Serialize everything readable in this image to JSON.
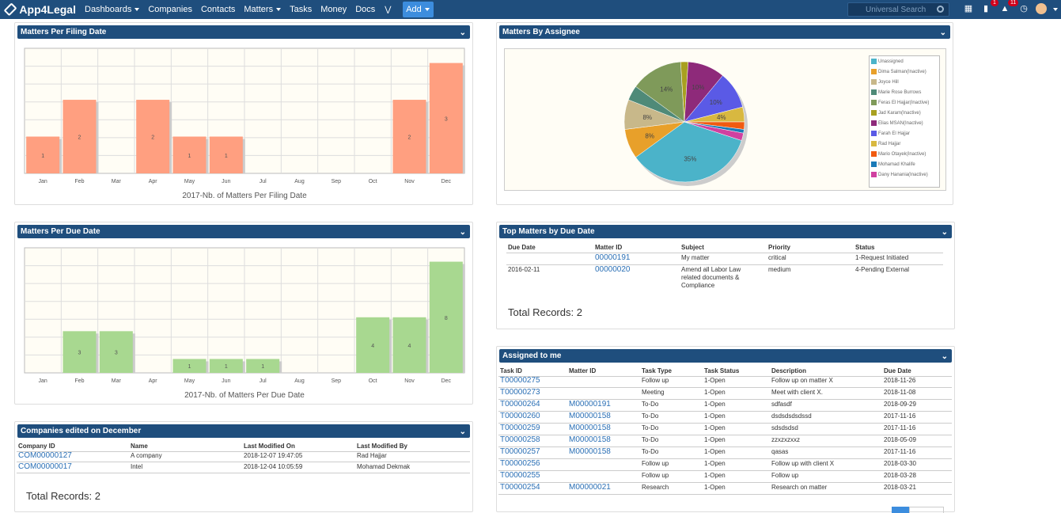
{
  "app": {
    "name": "App4Legal"
  },
  "nav": {
    "items": [
      {
        "label": "Dashboards",
        "caret": true
      },
      {
        "label": "Companies",
        "caret": false
      },
      {
        "label": "Contacts",
        "caret": false
      },
      {
        "label": "Matters",
        "caret": true
      },
      {
        "label": "Tasks",
        "caret": false
      },
      {
        "label": "Money",
        "caret": false
      },
      {
        "label": "Docs",
        "caret": false
      }
    ],
    "add_label": "Add",
    "search_placeholder": "Universal Search",
    "messages_badge": "1",
    "notifications_badge": "11"
  },
  "panels": {
    "filing": {
      "title": "Matters Per Filing Date"
    },
    "assignee": {
      "title": "Matters By Assignee"
    },
    "due": {
      "title": "Matters Per Due Date"
    },
    "top_matters": {
      "title": "Top Matters by Due Date"
    },
    "companies": {
      "title": "Companies edited on December"
    },
    "assigned": {
      "title": "Assigned to me"
    }
  },
  "chart_data": [
    {
      "type": "bar",
      "title": "2017-Nb. of Matters Per Filing Date",
      "categories": [
        "Jan",
        "Feb",
        "Mar",
        "Apr",
        "May",
        "Jun",
        "Jul",
        "Aug",
        "Sep",
        "Oct",
        "Nov",
        "Dec"
      ],
      "values": [
        1,
        2,
        0,
        2,
        1,
        1,
        0,
        0,
        0,
        0,
        2,
        3
      ],
      "ylim": [
        0,
        3.4
      ],
      "color": "#ff9f80",
      "grid": true
    },
    {
      "type": "pie",
      "title": "",
      "slices": [
        {
          "label": "Unassigned",
          "value": 35,
          "color": "#4bb3c9",
          "text": "35%"
        },
        {
          "label": "Dima Salman(Inactive)",
          "value": 8,
          "color": "#e8a02a",
          "text": "8%"
        },
        {
          "label": "Joyce Hill",
          "value": 8,
          "color": "#c8b88a",
          "text": "8%"
        },
        {
          "label": "Marie Rose Burrows",
          "value": 4,
          "color": "#4f8a78",
          "text": ""
        },
        {
          "label": "Feras El Hajjar(Inactive)",
          "value": 14,
          "color": "#7f9a5a",
          "text": "14%"
        },
        {
          "label": "Jad Karam(Inactive)",
          "value": 2,
          "color": "#a8a020",
          "text": ""
        },
        {
          "label": "Elias MSAN(Inactive)",
          "value": 10,
          "color": "#8e2a7a",
          "text": "10%"
        },
        {
          "label": "Farah El Hajjar",
          "value": 10,
          "color": "#5a5ae6",
          "text": "10%"
        },
        {
          "label": "Rad Hajjar",
          "value": 4,
          "color": "#d8b840",
          "text": "4%"
        },
        {
          "label": "Mario Otayek(Inactive)",
          "value": 2,
          "color": "#f05a10",
          "text": ""
        },
        {
          "label": "Mohamad Khalife",
          "value": 1,
          "color": "#1a7ab8",
          "text": ""
        },
        {
          "label": "Dany Hanania(Inactive)",
          "value": 2,
          "color": "#d040a0",
          "text": ""
        }
      ]
    },
    {
      "type": "bar",
      "title": "2017-Nb. of Matters Per Due Date",
      "categories": [
        "Jan",
        "Feb",
        "Mar",
        "Apr",
        "May",
        "Jun",
        "Jul",
        "Aug",
        "Sep",
        "Oct",
        "Nov",
        "Dec"
      ],
      "values": [
        0,
        3,
        3,
        0,
        1,
        1,
        1,
        0,
        0,
        4,
        4,
        8
      ],
      "ylim": [
        0,
        9
      ],
      "color": "#a8d890",
      "grid": true
    }
  ],
  "top_matters": {
    "headers": [
      "Due Date",
      "Matter ID",
      "Subject",
      "Priority",
      "Status"
    ],
    "rows": [
      {
        "due": "",
        "id": "00000191",
        "subject": "My matter",
        "priority": "critical",
        "status": "1-Request Initiated"
      },
      {
        "due": "2016-02-11",
        "id": "00000020",
        "subject": "Amend all Labor Law related documents & Compliance",
        "priority": "medium",
        "status": "4-Pending External"
      }
    ],
    "total": "Total Records: 2"
  },
  "companies": {
    "headers": [
      "Company ID",
      "Name",
      "Last Modified On",
      "Last Modified By"
    ],
    "rows": [
      {
        "id": "COM00000127",
        "name": "A company",
        "on": "2018-12-07 19:47:05",
        "by": "Rad Hajjar"
      },
      {
        "id": "COM00000017",
        "name": "Intel",
        "on": "2018-12-04 10:05:59",
        "by": "Mohamad Dekmak"
      }
    ],
    "total": "Total Records: 2"
  },
  "assigned": {
    "headers": [
      "Task ID",
      "Matter ID",
      "Task Type",
      "Task Status",
      "Description",
      "Due Date"
    ],
    "rows": [
      {
        "task": "T00000275",
        "matter": "",
        "type": "Follow up",
        "status": "1-Open",
        "desc": "Follow up on matter X",
        "due": "2018-11-26"
      },
      {
        "task": "T00000273",
        "matter": "",
        "type": "Meeting",
        "status": "1-Open",
        "desc": "Meet with client X.",
        "due": "2018-11-08"
      },
      {
        "task": "T00000264",
        "matter": "M00000191",
        "type": "To-Do",
        "status": "1-Open",
        "desc": "sdfasdf",
        "due": "2018-09-29"
      },
      {
        "task": "T00000260",
        "matter": "M00000158",
        "type": "To-Do",
        "status": "1-Open",
        "desc": "dsdsdsdsdssd",
        "due": "2017-11-16"
      },
      {
        "task": "T00000259",
        "matter": "M00000158",
        "type": "To-Do",
        "status": "1-Open",
        "desc": "sdsdsdsd",
        "due": "2017-11-16"
      },
      {
        "task": "T00000258",
        "matter": "M00000158",
        "type": "To-Do",
        "status": "1-Open",
        "desc": "zzxzxzxxz",
        "due": "2018-05-09"
      },
      {
        "task": "T00000257",
        "matter": "M00000158",
        "type": "To-Do",
        "status": "1-Open",
        "desc": "qasas",
        "due": "2017-11-16"
      },
      {
        "task": "T00000256",
        "matter": "",
        "type": "Follow up",
        "status": "1-Open",
        "desc": "Follow up with client X",
        "due": "2018-03-30"
      },
      {
        "task": "T00000255",
        "matter": "",
        "type": "Follow up",
        "status": "1-Open",
        "desc": "Follow up",
        "due": "2018-03-28"
      },
      {
        "task": "T00000254",
        "matter": "M00000021",
        "type": "Research",
        "status": "1-Open",
        "desc": "Research on matter",
        "due": "2018-03-21"
      }
    ]
  }
}
